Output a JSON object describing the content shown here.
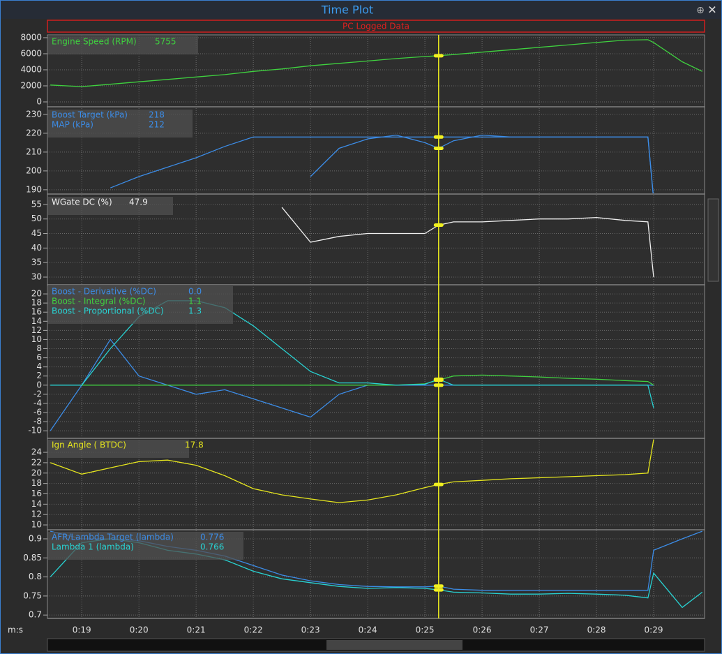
{
  "window": {
    "title": "Time Plot",
    "banner": "PC Logged Data",
    "x_axis_label": "m:s"
  },
  "cursor_x": 25.24,
  "chart_data": [
    {
      "type": "line",
      "x": [
        18.45,
        19,
        19.5,
        20,
        20.5,
        21,
        21.5,
        22,
        22.5,
        23,
        23.5,
        24,
        24.5,
        25,
        25.24,
        25.5,
        26,
        26.5,
        27,
        27.5,
        28,
        28.5,
        28.9,
        29,
        29.5,
        29.85
      ],
      "xlim": [
        18.4,
        29.89
      ],
      "xticks": [
        {
          "value": 19,
          "label": "0:19"
        },
        {
          "value": 20,
          "label": "0:20"
        },
        {
          "value": 21,
          "label": "0:21"
        },
        {
          "value": 22,
          "label": "0:22"
        },
        {
          "value": 23,
          "label": "0:23"
        },
        {
          "value": 24,
          "label": "0:24"
        },
        {
          "value": 25,
          "label": "0:25"
        },
        {
          "value": 26,
          "label": "0:26"
        },
        {
          "value": 27,
          "label": "0:27"
        },
        {
          "value": 28,
          "label": "0:28"
        },
        {
          "value": 29,
          "label": "0:29"
        }
      ],
      "ylim": [
        -522,
        8348
      ],
      "yticks": [
        0,
        2000,
        4000,
        6000,
        8000
      ],
      "grid": true,
      "series": [
        {
          "name": "Engine Speed (RPM)",
          "color": "#3fd13f",
          "readout": 5755,
          "values": [
            2100,
            1900,
            2200,
            2500,
            2800,
            3100,
            3400,
            3800,
            4100,
            4500,
            4800,
            5100,
            5400,
            5650,
            5755,
            5900,
            6200,
            6500,
            6800,
            7100,
            7400,
            7700,
            7750,
            7400,
            5000,
            3800
          ]
        }
      ]
    },
    {
      "type": "line",
      "x": [
        18.45,
        19,
        19.5,
        20,
        20.5,
        21,
        21.5,
        22,
        22.5,
        23,
        23.5,
        24,
        24.5,
        25,
        25.24,
        25.5,
        26,
        26.5,
        27,
        27.5,
        28,
        28.5,
        28.9,
        29,
        29.5,
        29.85
      ],
      "xlim": [
        18.4,
        29.89
      ],
      "xticks": [
        {
          "value": 19,
          "label": "0:19"
        },
        {
          "value": 20,
          "label": "0:20"
        },
        {
          "value": 21,
          "label": "0:21"
        },
        {
          "value": 22,
          "label": "0:22"
        },
        {
          "value": 23,
          "label": "0:23"
        },
        {
          "value": 24,
          "label": "0:24"
        },
        {
          "value": 25,
          "label": "0:25"
        },
        {
          "value": 26,
          "label": "0:26"
        },
        {
          "value": 27,
          "label": "0:27"
        },
        {
          "value": 28,
          "label": "0:28"
        },
        {
          "value": 29,
          "label": "0:29"
        }
      ],
      "ylim": [
        188.1,
        233.3
      ],
      "yticks": [
        190,
        200,
        210,
        220,
        230
      ],
      "grid": true,
      "series": [
        {
          "name": "Boost Target (kPa)",
          "color": "#3c8ce6",
          "readout": 218,
          "values": [
            null,
            null,
            191,
            197,
            202,
            207,
            213,
            218,
            218,
            218,
            218,
            218,
            218,
            218,
            218,
            218,
            218,
            218,
            218,
            218,
            218,
            218,
            218,
            185,
            null,
            null
          ]
        },
        {
          "name": "MAP (kPa)",
          "color": "#3c8ce6",
          "readout": 212,
          "values": [
            null,
            null,
            null,
            null,
            null,
            null,
            null,
            null,
            null,
            197,
            212,
            217,
            219,
            215,
            212,
            216,
            219,
            218,
            218,
            218,
            218,
            218,
            218,
            185,
            null,
            null
          ]
        }
      ]
    },
    {
      "type": "line",
      "x": [
        18.45,
        19,
        19.5,
        20,
        20.5,
        21,
        21.5,
        22,
        22.5,
        23,
        23.5,
        24,
        24.5,
        25,
        25.24,
        25.5,
        26,
        26.5,
        27,
        27.5,
        28,
        28.5,
        28.9,
        29,
        29.5,
        29.85
      ],
      "xlim": [
        18.4,
        29.89
      ],
      "xticks": [
        {
          "value": 19,
          "label": "0:19"
        },
        {
          "value": 20,
          "label": "0:20"
        },
        {
          "value": 21,
          "label": "0:21"
        },
        {
          "value": 22,
          "label": "0:22"
        },
        {
          "value": 23,
          "label": "0:23"
        },
        {
          "value": 24,
          "label": "0:24"
        },
        {
          "value": 25,
          "label": "0:25"
        },
        {
          "value": 26,
          "label": "0:26"
        },
        {
          "value": 27,
          "label": "0:27"
        },
        {
          "value": 28,
          "label": "0:28"
        },
        {
          "value": 29,
          "label": "0:29"
        }
      ],
      "ylim": [
        27.6,
        58.1
      ],
      "yticks": [
        30,
        35,
        40,
        45,
        50,
        55
      ],
      "grid": true,
      "series": [
        {
          "name": "WGate DC (%)",
          "color": "#f0f0f0",
          "readout": 47.9,
          "values": [
            null,
            null,
            null,
            null,
            null,
            null,
            null,
            null,
            54,
            42,
            44,
            45,
            45,
            45,
            47.9,
            49,
            49,
            49.5,
            50,
            50,
            50.5,
            49.5,
            49,
            30,
            null,
            null
          ]
        }
      ]
    },
    {
      "type": "line",
      "x": [
        18.45,
        19,
        19.5,
        20,
        20.5,
        21,
        21.5,
        22,
        22.5,
        23,
        23.5,
        24,
        24.5,
        25,
        25.24,
        25.5,
        26,
        26.5,
        27,
        27.5,
        28,
        28.5,
        28.9,
        29,
        29.5,
        29.85
      ],
      "xlim": [
        18.4,
        29.89
      ],
      "xticks": [
        {
          "value": 19,
          "label": "0:19"
        },
        {
          "value": 20,
          "label": "0:20"
        },
        {
          "value": 21,
          "label": "0:21"
        },
        {
          "value": 22,
          "label": "0:22"
        },
        {
          "value": 23,
          "label": "0:23"
        },
        {
          "value": 24,
          "label": "0:24"
        },
        {
          "value": 25,
          "label": "0:25"
        },
        {
          "value": 26,
          "label": "0:26"
        },
        {
          "value": 27,
          "label": "0:27"
        },
        {
          "value": 28,
          "label": "0:28"
        },
        {
          "value": 29,
          "label": "0:29"
        }
      ],
      "ylim": [
        -11.5,
        22.0
      ],
      "yticks": [
        -10,
        -8,
        -6,
        -4,
        -2,
        0,
        2,
        4,
        6,
        8,
        10,
        12,
        14,
        16,
        18,
        20
      ],
      "grid": true,
      "series": [
        {
          "name": "Boost - Derivative (%DC)",
          "color": "#3c8ce6",
          "readout": {
            "value": 0,
            "label": "0.0"
          },
          "values": [
            -10,
            0,
            10,
            2,
            0,
            -2,
            -1,
            -3,
            -5,
            -7,
            -2,
            0,
            0,
            0,
            0,
            0,
            0,
            0,
            0,
            0,
            0,
            0,
            0,
            0,
            null,
            null
          ]
        },
        {
          "name": "Boost - Integral (%DC)",
          "color": "#40d040",
          "readout": 1.1,
          "values": [
            null,
            0,
            0,
            0,
            0,
            0,
            0,
            0,
            0,
            0,
            0,
            0,
            0,
            0.3,
            1.1,
            2,
            2.2,
            2,
            1.8,
            1.5,
            1.3,
            1,
            0.8,
            0,
            null,
            null
          ]
        },
        {
          "name": "Boost - Proportional (%DC)",
          "color": "#28d2d2",
          "readout": 1.3,
          "values": [
            0,
            0,
            8,
            15,
            18.5,
            18.5,
            17,
            13,
            8,
            3,
            0.5,
            0.5,
            0,
            0.2,
            1.3,
            0,
            0,
            0,
            0,
            0,
            0,
            0,
            0,
            -5,
            null,
            null
          ]
        }
      ]
    },
    {
      "type": "line",
      "x": [
        18.45,
        19,
        19.5,
        20,
        20.5,
        21,
        21.5,
        22,
        22.5,
        23,
        23.5,
        24,
        24.5,
        25,
        25.24,
        25.5,
        26,
        26.5,
        27,
        27.5,
        28,
        28.5,
        28.9,
        29,
        29.5,
        29.85
      ],
      "xlim": [
        18.4,
        29.89
      ],
      "xticks": [
        {
          "value": 19,
          "label": "0:19"
        },
        {
          "value": 20,
          "label": "0:20"
        },
        {
          "value": 21,
          "label": "0:21"
        },
        {
          "value": 22,
          "label": "0:22"
        },
        {
          "value": 23,
          "label": "0:23"
        },
        {
          "value": 24,
          "label": "0:24"
        },
        {
          "value": 25,
          "label": "0:25"
        },
        {
          "value": 26,
          "label": "0:26"
        },
        {
          "value": 27,
          "label": "0:27"
        },
        {
          "value": 28,
          "label": "0:28"
        },
        {
          "value": 29,
          "label": "0:29"
        }
      ],
      "ylim": [
        9.2,
        26.7
      ],
      "yticks": [
        10,
        12,
        14,
        16,
        18,
        20,
        22,
        24
      ],
      "grid": true,
      "series": [
        {
          "name": "Ign Angle ( BTDC)",
          "color": "#e6e61e",
          "readout": 17.8,
          "values": [
            22,
            19.8,
            21,
            22.2,
            22.5,
            21.5,
            19.5,
            17,
            15.8,
            15,
            14.3,
            14.8,
            15.8,
            17.2,
            17.8,
            18.3,
            18.6,
            18.9,
            19.1,
            19.3,
            19.5,
            19.7,
            20,
            26.5,
            null,
            null
          ]
        }
      ]
    },
    {
      "type": "line",
      "x": [
        18.45,
        19,
        19.5,
        20,
        20.5,
        21,
        21.5,
        22,
        22.5,
        23,
        23.5,
        24,
        24.5,
        25,
        25.24,
        25.5,
        26,
        26.5,
        27,
        27.5,
        28,
        28.5,
        28.9,
        29,
        29.5,
        29.85
      ],
      "xlim": [
        18.4,
        29.89
      ],
      "xticks": [
        {
          "value": 19,
          "label": "0:19"
        },
        {
          "value": 20,
          "label": "0:20"
        },
        {
          "value": 21,
          "label": "0:21"
        },
        {
          "value": 22,
          "label": "0:22"
        },
        {
          "value": 23,
          "label": "0:23"
        },
        {
          "value": 24,
          "label": "0:24"
        },
        {
          "value": 25,
          "label": "0:25"
        },
        {
          "value": 26,
          "label": "0:26"
        },
        {
          "value": 27,
          "label": "0:27"
        },
        {
          "value": 28,
          "label": "0:28"
        },
        {
          "value": 29,
          "label": "0:29"
        }
      ],
      "ylim": [
        0.693,
        0.922
      ],
      "yticks": [
        0.7,
        0.75,
        0.8,
        0.85,
        0.9
      ],
      "grid": true,
      "series": [
        {
          "name": "AFR/Lambda Target (lambda)",
          "color": "#3c8ce6",
          "readout": 0.776,
          "values": [
            0.92,
            0.9,
            0.9,
            0.895,
            0.88,
            0.87,
            0.855,
            0.83,
            0.805,
            0.79,
            0.78,
            0.775,
            0.774,
            0.774,
            0.776,
            0.768,
            0.765,
            0.765,
            0.765,
            0.765,
            0.765,
            0.765,
            0.765,
            0.87,
            0.9,
            0.92
          ]
        },
        {
          "name": "Lambda 1 (lambda)",
          "color": "#28d2d2",
          "readout": 0.766,
          "values": [
            0.8,
            0.89,
            0.9,
            0.89,
            0.87,
            0.86,
            0.845,
            0.815,
            0.795,
            0.785,
            0.775,
            0.77,
            0.772,
            0.77,
            0.766,
            0.76,
            0.758,
            0.755,
            0.755,
            0.757,
            0.755,
            0.752,
            0.745,
            0.81,
            0.72,
            0.76
          ]
        }
      ]
    }
  ]
}
